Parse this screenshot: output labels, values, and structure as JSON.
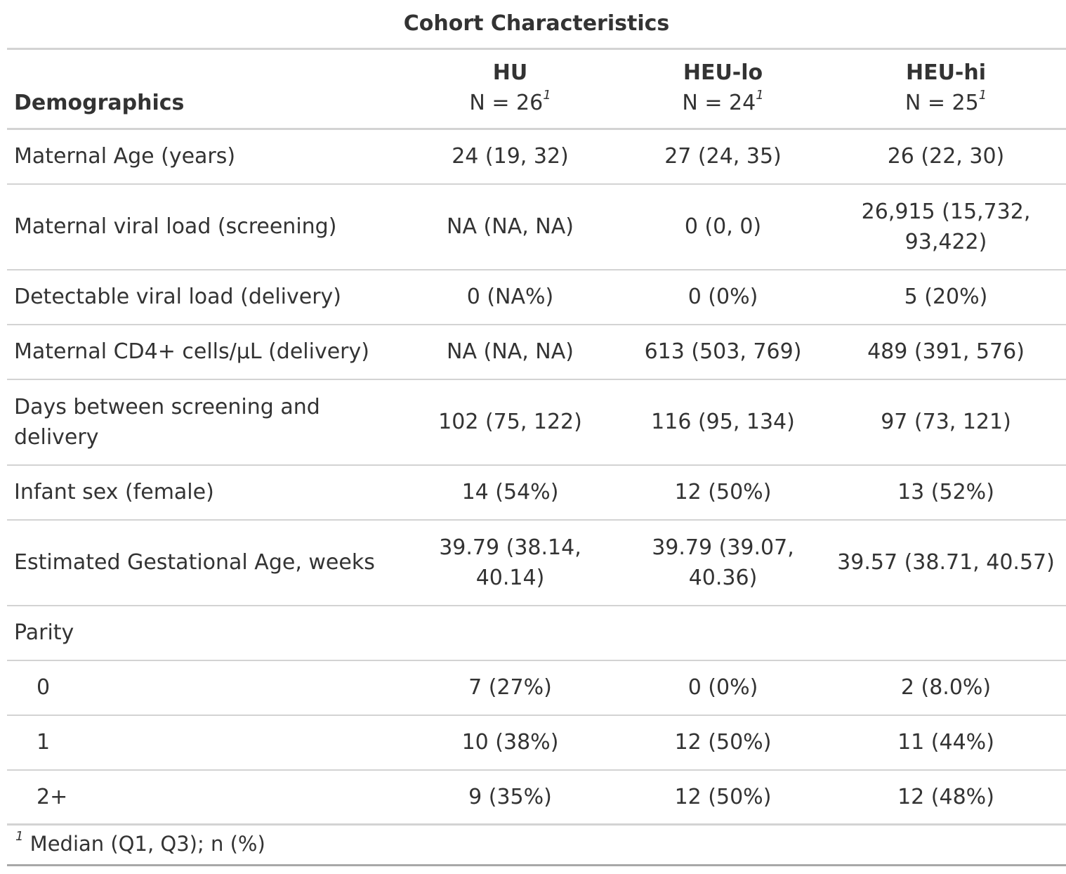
{
  "chart_data": {
    "type": "table",
    "title": "Cohort Characteristics",
    "stub_header": "Demographics",
    "columns": [
      {
        "name": "HU",
        "n": "N = 26",
        "mark": "1"
      },
      {
        "name": "HEU-lo",
        "n": "N = 24",
        "mark": "1"
      },
      {
        "name": "HEU-hi",
        "n": "N = 25",
        "mark": "1"
      }
    ],
    "rows": [
      {
        "label": "Maternal Age (years)",
        "values": [
          "24 (19, 32)",
          "27 (24, 35)",
          "26 (22, 30)"
        ]
      },
      {
        "label": "Maternal viral load (screening)",
        "values": [
          "NA (NA, NA)",
          "0 (0, 0)",
          "26,915 (15,732, 93,422)"
        ]
      },
      {
        "label": "Detectable viral load (delivery)",
        "values": [
          "0 (NA%)",
          "0 (0%)",
          "5 (20%)"
        ]
      },
      {
        "label": "Maternal CD4+ cells/µL (delivery)",
        "values": [
          "NA (NA, NA)",
          "613 (503, 769)",
          "489 (391, 576)"
        ]
      },
      {
        "label": "Days between screening and delivery",
        "values": [
          "102 (75, 122)",
          "116 (95, 134)",
          "97 (73, 121)"
        ]
      },
      {
        "label": "Infant sex (female)",
        "values": [
          "14 (54%)",
          "12 (50%)",
          "13 (52%)"
        ]
      },
      {
        "label": "Estimated Gestational Age, weeks",
        "values": [
          "39.79 (38.14, 40.14)",
          "39.79 (39.07, 40.36)",
          "39.57 (38.71, 40.57)"
        ]
      },
      {
        "label": "Parity",
        "values": [
          "",
          "",
          ""
        ]
      },
      {
        "label": "0",
        "values": [
          "7 (27%)",
          "0 (0%)",
          "2 (8.0%)"
        ]
      },
      {
        "label": "1",
        "values": [
          "10 (38%)",
          "12 (50%)",
          "11 (44%)"
        ]
      },
      {
        "label": "2+",
        "values": [
          "9 (35%)",
          "12 (50%)",
          "12 (48%)"
        ]
      }
    ],
    "footnote": {
      "mark": "1",
      "text": "Median (Q1, Q3); n (%)"
    }
  }
}
